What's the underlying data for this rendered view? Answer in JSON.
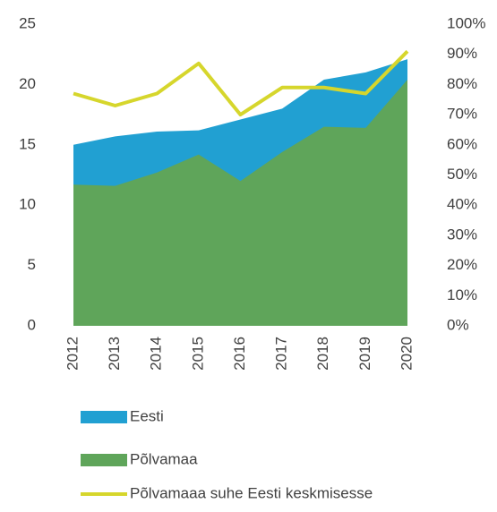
{
  "chart_data": {
    "type": "area",
    "categories": [
      "2012",
      "2013",
      "2014",
      "2015",
      "2016",
      "2017",
      "2018",
      "2019",
      "2020"
    ],
    "series": [
      {
        "name": "Eesti",
        "color": "#21a0d2",
        "values": [
          15.0,
          15.7,
          16.1,
          16.2,
          17.1,
          18.0,
          20.4,
          21.0,
          22.1
        ]
      },
      {
        "name": "Põlvamaa",
        "color": "#5fa55a",
        "values": [
          11.7,
          11.6,
          12.7,
          14.2,
          12.0,
          14.4,
          16.5,
          16.4,
          20.4
        ]
      },
      {
        "name": "Põlvamaaa suhe Eesti keskmisesse",
        "color": "#d6d62c",
        "axis": "y2",
        "kind": "line",
        "values": [
          77,
          73,
          77,
          87,
          70,
          79,
          79,
          77,
          91
        ]
      }
    ],
    "ylim": [
      0,
      25
    ],
    "yticks": [
      0,
      5,
      10,
      15,
      20,
      25
    ],
    "y2lim": [
      0,
      100
    ],
    "y2ticks": [
      {
        "value": 0,
        "label": "0%"
      },
      {
        "value": 10,
        "label": "10%"
      },
      {
        "value": 20,
        "label": "20%"
      },
      {
        "value": 30,
        "label": "30%"
      },
      {
        "value": 40,
        "label": "40%"
      },
      {
        "value": 50,
        "label": "50%"
      },
      {
        "value": 60,
        "label": "60%"
      },
      {
        "value": 70,
        "label": "70%"
      },
      {
        "value": 80,
        "label": "80%"
      },
      {
        "value": 90,
        "label": "90%"
      },
      {
        "value": 100,
        "label": "100%"
      }
    ],
    "legend": "bottom"
  }
}
